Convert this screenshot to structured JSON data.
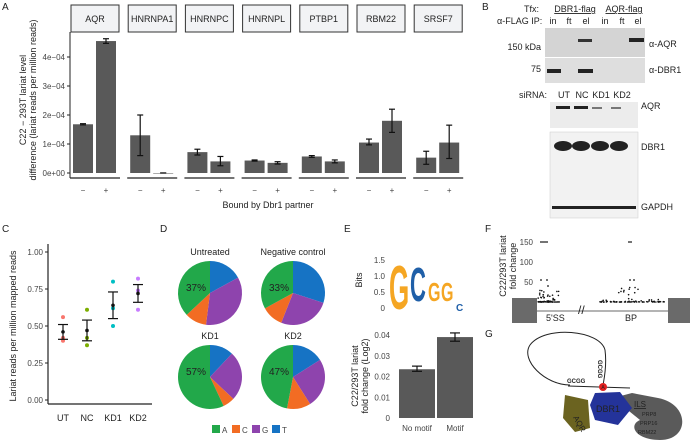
{
  "panel_labels": {
    "A": "A",
    "B": "B",
    "C": "C",
    "D": "D",
    "E": "E",
    "F": "F",
    "G": "G"
  },
  "colors": {
    "bar": "#595959",
    "A": "#22a84a",
    "C": "#f26c23",
    "G": "#8e44ad",
    "T": "#1673c4",
    "UT": "#f8766d",
    "NC": "#7cae00",
    "KD1": "#00bfc4",
    "KD2": "#c77cff",
    "logo_G": "#f5a623",
    "logo_C": "#1f5fa8",
    "dbr1": "#24339a",
    "aqr": "#6b6320",
    "ils": "#5a5a5a",
    "branch": "#e02020"
  },
  "chart_data": [
    {
      "id": "A",
      "type": "bar",
      "ylabel": "C22 − 293T lariat level difference (lariat reads per million reads)",
      "xlabel": "Bound by Dbr1 partner",
      "yticks": [
        "0e+00",
        "1e−04",
        "2e−04",
        "3e−04",
        "4e−04"
      ],
      "ylim": [
        0,
        0.00048
      ],
      "categories": [
        "−",
        "+"
      ],
      "facets": [
        {
          "name": "AQR",
          "values": [
            0.000168,
            0.000455
          ],
          "err_low": [
            0.000166,
            0.000447
          ],
          "err_high": [
            0.00017,
            0.000463
          ]
        },
        {
          "name": "HNRNPA1",
          "values": [
            0.00013,
            0.0
          ],
          "err_low": [
            6e-05,
            0.0
          ],
          "err_high": [
            0.0002,
            0.0
          ]
        },
        {
          "name": "HNRNPC",
          "values": [
            7.2e-05,
            4e-05
          ],
          "err_low": [
            6.2e-05,
            2.5e-05
          ],
          "err_high": [
            8.2e-05,
            5.7e-05
          ]
        },
        {
          "name": "HNRNPL",
          "values": [
            4.3e-05,
            3.5e-05
          ],
          "err_low": [
            4.1e-05,
            3.1e-05
          ],
          "err_high": [
            4.5e-05,
            3.9e-05
          ]
        },
        {
          "name": "PTBP1",
          "values": [
            5.7e-05,
            4e-05
          ],
          "err_low": [
            5.4e-05,
            3.5e-05
          ],
          "err_high": [
            6e-05,
            4.5e-05
          ]
        },
        {
          "name": "RBM22",
          "values": [
            0.000105,
            0.00018
          ],
          "err_low": [
            9.7e-05,
            0.00014
          ],
          "err_high": [
            0.000117,
            0.00022
          ]
        },
        {
          "name": "SRSF7",
          "values": [
            5.3e-05,
            0.000105
          ],
          "err_low": [
            3e-05,
            5e-05
          ],
          "err_high": [
            7.5e-05,
            0.000165
          ]
        }
      ]
    },
    {
      "id": "C",
      "type": "scatter",
      "ylabel": "Lariat reads per million mapped reads",
      "yticks": [
        "0.00",
        "0.25",
        "0.50",
        "0.75",
        "1.00"
      ],
      "ylim": [
        0,
        1.0
      ],
      "categories": [
        "UT",
        "NC",
        "KD1",
        "KD2"
      ],
      "points": [
        [
          0.56,
          0.42,
          0.4
        ],
        [
          0.61,
          0.42,
          0.37
        ],
        [
          0.8,
          0.62,
          0.5
        ],
        [
          0.82,
          0.74,
          0.61
        ]
      ],
      "mean": [
        0.46,
        0.47,
        0.64,
        0.72
      ],
      "err_low": [
        0.41,
        0.4,
        0.55,
        0.66
      ],
      "err_high": [
        0.51,
        0.54,
        0.73,
        0.78
      ]
    },
    {
      "id": "D",
      "type": "pie",
      "legend": [
        "A",
        "C",
        "G",
        "T"
      ],
      "pies": [
        {
          "title": "Untreated",
          "label": "37%",
          "T": 17,
          "G": 35,
          "C": 11,
          "A": 37
        },
        {
          "title": "Negative control",
          "label": "33%",
          "T": 30,
          "G": 26,
          "C": 11,
          "A": 33
        },
        {
          "title": "KD1",
          "label": "57%",
          "T": 12,
          "G": 25,
          "C": 6,
          "A": 57
        },
        {
          "title": "KD2",
          "label": "47%",
          "T": 16,
          "G": 25,
          "C": 12,
          "A": 47
        }
      ]
    },
    {
      "id": "E-logo",
      "type": "sequence-logo",
      "ylabel": "Bits",
      "yticks": [
        "0",
        "0.5",
        "1.0",
        "1.5"
      ],
      "letters": [
        "G",
        "C",
        "G",
        "G",
        "C"
      ]
    },
    {
      "id": "E",
      "type": "bar",
      "ylabel": "C22/293T lariat fold change (Log2)",
      "yticks": [
        "0",
        "0.01",
        "0.02",
        "0.03",
        "0.04"
      ],
      "ylim": [
        0,
        0.042
      ],
      "categories": [
        "No motif",
        "Motif"
      ],
      "values": [
        0.0235,
        0.039
      ],
      "err_low": [
        0.0225,
        0.037
      ],
      "err_high": [
        0.025,
        0.041
      ]
    },
    {
      "id": "F",
      "type": "scatter",
      "ylabel": "C22/293T lariat fold change",
      "yticks": [
        "50",
        "100",
        "150"
      ],
      "ylim": [
        0,
        160
      ],
      "regions": [
        "5'SS",
        "BP"
      ]
    }
  ],
  "blot_B": {
    "tfx_label": "Tfx:",
    "tfx": [
      "DBR1-flag",
      "AQR-flag"
    ],
    "ip_label": "α-FLAG IP:",
    "lanes": [
      "in",
      "ft",
      "el",
      "in",
      "ft",
      "el"
    ],
    "markers": [
      "150 kDa",
      "75"
    ],
    "antibodies": [
      "α-AQR",
      "α-DBR1"
    ],
    "sirna_label": "siRNA:",
    "sirna": [
      "UT",
      "NC",
      "KD1",
      "KD2"
    ],
    "proteins": [
      "AQR",
      "DBR1",
      "GAPDH"
    ]
  },
  "diagram_G": {
    "motif": "GCGG",
    "branch": "A",
    "dbr1": "DBR1",
    "aqr": "AQR",
    "ils": "ILS",
    "ils_parts": [
      "PRP8",
      "PRP16",
      "RBM22"
    ]
  }
}
